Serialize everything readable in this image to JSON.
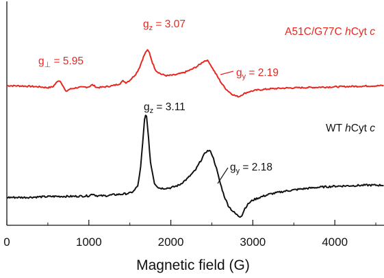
{
  "chart_data": {
    "type": "line",
    "title": "",
    "xlabel": "Magnetic field (G)",
    "ylabel": "",
    "xlim": [
      0,
      4600
    ],
    "xticks": [
      0,
      1000,
      2000,
      3000,
      4000
    ],
    "yticks_shown": false,
    "grid": false,
    "series": [
      {
        "name": "A51C/G77C hCyt c",
        "color": "#e8261f",
        "x": [
          0,
          200,
          400,
          500,
          560,
          600,
          630,
          660,
          690,
          720,
          760,
          850,
          1000,
          1040,
          1070,
          1100,
          1200,
          1300,
          1380,
          1420,
          1450,
          1500,
          1540,
          1580,
          1620,
          1660,
          1700,
          1720,
          1740,
          1780,
          1820,
          1880,
          1950,
          2050,
          2150,
          2250,
          2330,
          2400,
          2440,
          2470,
          2500,
          2560,
          2620,
          2680,
          2740,
          2790,
          2830,
          2860,
          2900,
          2950,
          3050,
          3200,
          3400,
          3600,
          3800,
          4000,
          4200,
          4400,
          4600
        ],
        "y": [
          0.5,
          0.4,
          0.2,
          0.0,
          0.2,
          1.1,
          1.8,
          1.4,
          0.2,
          -1.0,
          -0.4,
          0.0,
          0.2,
          0.7,
          0.4,
          0.0,
          0.2,
          0.5,
          1.0,
          1.7,
          1.2,
          1.8,
          2.6,
          3.5,
          5.0,
          7.2,
          8.9,
          9.1,
          8.4,
          5.8,
          4.1,
          3.3,
          2.9,
          3.1,
          3.6,
          4.4,
          5.3,
          6.4,
          6.7,
          6.1,
          5.0,
          3.0,
          1.0,
          -0.5,
          -1.5,
          -2.0,
          -2.2,
          -1.8,
          -1.4,
          -1.0,
          -0.6,
          -0.3,
          -0.1,
          0.0,
          0.1,
          0.2,
          0.3,
          0.4,
          0.5
        ]
      },
      {
        "name": "WT hCyt c",
        "color": "#111111",
        "x": [
          0,
          200,
          400,
          600,
          800,
          1000,
          1050,
          1080,
          1110,
          1200,
          1300,
          1400,
          1500,
          1550,
          1600,
          1630,
          1660,
          1680,
          1700,
          1720,
          1750,
          1800,
          1850,
          1900,
          2000,
          2100,
          2200,
          2300,
          2380,
          2430,
          2470,
          2500,
          2550,
          2600,
          2650,
          2700,
          2750,
          2800,
          2840,
          2870,
          2900,
          2950,
          3000,
          3100,
          3200,
          3400,
          3600,
          3800,
          4000,
          4200,
          4400,
          4600
        ],
        "y": [
          -0.3,
          -0.3,
          -0.2,
          -0.1,
          -0.1,
          0.0,
          0.4,
          0.1,
          0.0,
          0.0,
          0.2,
          0.3,
          0.5,
          0.9,
          2.0,
          5.0,
          10.5,
          14.5,
          15.3,
          12.5,
          6.5,
          2.4,
          1.5,
          1.4,
          1.5,
          2.0,
          3.2,
          4.8,
          7.0,
          8.3,
          8.5,
          7.9,
          5.5,
          2.5,
          0.0,
          -1.8,
          -2.8,
          -3.5,
          -3.9,
          -3.6,
          -2.4,
          -1.4,
          -0.8,
          -0.2,
          0.3,
          0.9,
          1.3,
          1.6,
          1.8,
          1.9,
          2.0,
          2.0
        ]
      }
    ],
    "annotations": [
      {
        "series": "A51C/G77C hCyt c",
        "base": "g",
        "sub": "⊥",
        "text": " = 5.95"
      },
      {
        "series": "A51C/G77C hCyt c",
        "base": "g",
        "sub": "z",
        "text": " = 3.07"
      },
      {
        "series": "A51C/G77C hCyt c",
        "base": "g",
        "sub": "y",
        "text": " = 2.19"
      },
      {
        "series": "WT hCyt c",
        "base": "g",
        "sub": "z",
        "text": " = 3.11"
      },
      {
        "series": "WT hCyt c",
        "base": "g",
        "sub": "y",
        "text": " = 2.18"
      }
    ],
    "legend_labels": [
      {
        "series": "A51C/G77C hCyt c",
        "before": "A51C/G77C ",
        "italic": "h",
        "after": "Cyt ",
        "italic2": "c"
      },
      {
        "series": "WT hCyt c",
        "before": "WT ",
        "italic": "h",
        "after": "Cyt ",
        "italic2": "c"
      }
    ],
    "colors": {
      "mutant": "#e8261f",
      "wt": "#111111",
      "axis": "#111111"
    }
  }
}
